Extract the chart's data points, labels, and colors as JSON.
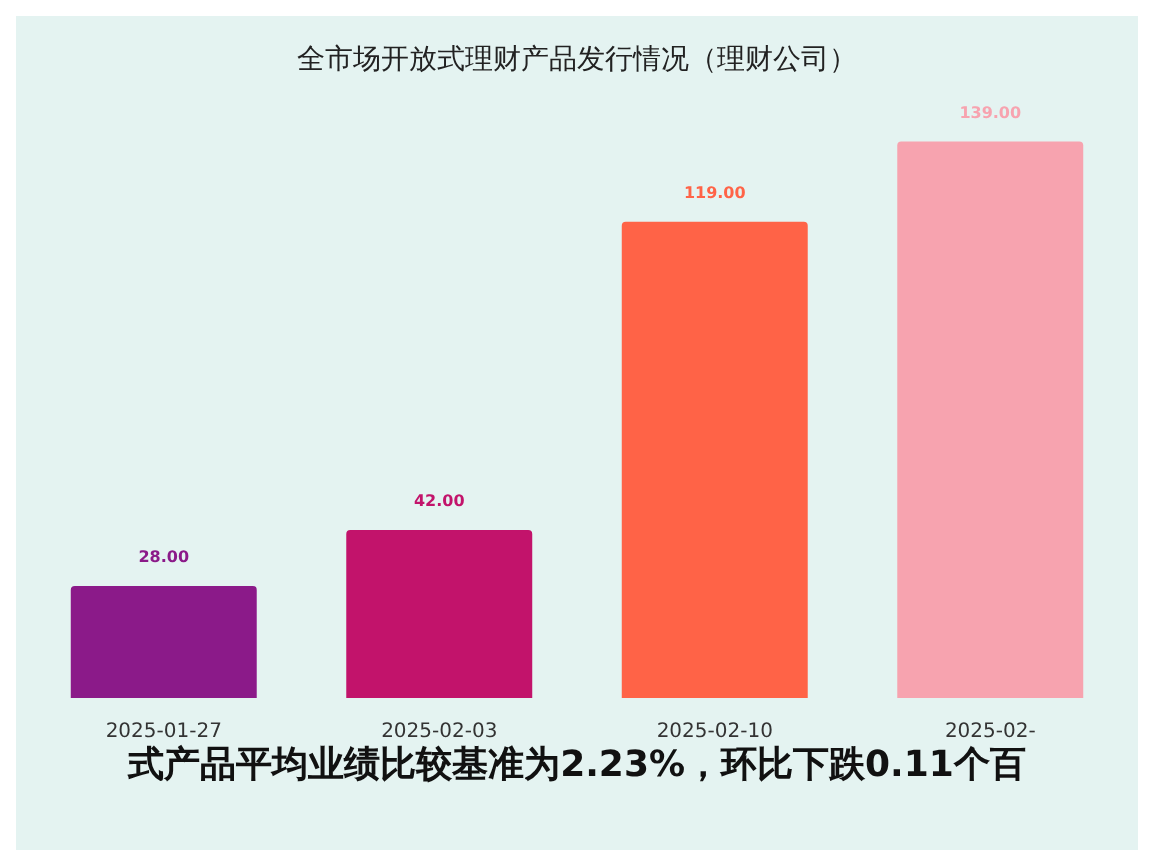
{
  "chart_data": {
    "type": "bar",
    "title": "全市场开放式理财产品发行情况（理财公司）",
    "categories": [
      "2025-01-27",
      "2025-02-03",
      "2025-02-10",
      "2025-02-"
    ],
    "values": [
      28,
      42,
      119,
      139
    ],
    "colors": [
      "#8b1a89",
      "#c2136b",
      "#ff6347",
      "#f7a3af"
    ],
    "value_labels": [
      "28.00",
      "42.00",
      "119.00",
      "139.00"
    ],
    "annotations": [
      "式产品平均业绩比较基准为2.23%，环比下跌0.11个百"
    ],
    "grid": false,
    "legend": false
  }
}
